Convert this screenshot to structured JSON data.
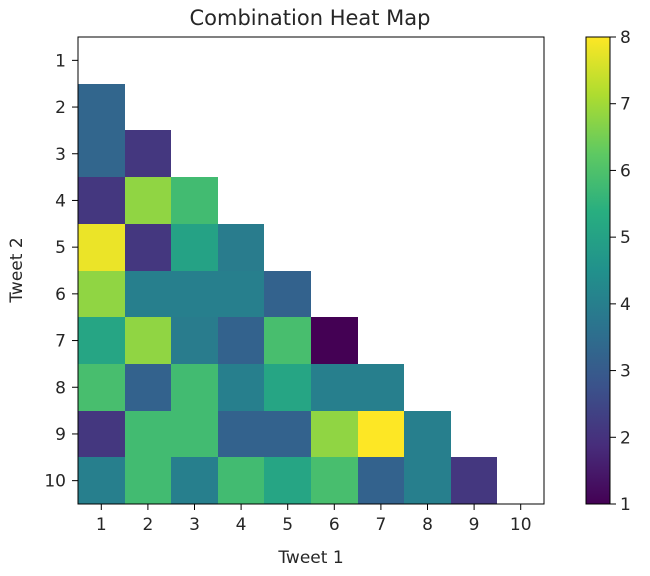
{
  "chart_data": {
    "type": "heatmap",
    "title": "Combination Heat Map",
    "xlabel": "Tweet 1",
    "ylabel": "Tweet 2",
    "x_categories": [
      "1",
      "2",
      "3",
      "4",
      "5",
      "6",
      "7",
      "8",
      "9",
      "10"
    ],
    "y_categories": [
      "1",
      "2",
      "3",
      "4",
      "5",
      "6",
      "7",
      "8",
      "9",
      "10"
    ],
    "values": [
      [
        null,
        null,
        null,
        null,
        null,
        null,
        null,
        null,
        null,
        null
      ],
      [
        3.3,
        null,
        null,
        null,
        null,
        null,
        null,
        null,
        null,
        null
      ],
      [
        3.3,
        2.1,
        null,
        null,
        null,
        null,
        null,
        null,
        null,
        null
      ],
      [
        2.1,
        6.8,
        5.8,
        null,
        null,
        null,
        null,
        null,
        null,
        null
      ],
      [
        7.8,
        2.1,
        5.0,
        3.9,
        null,
        null,
        null,
        null,
        null,
        null
      ],
      [
        6.8,
        4.0,
        4.0,
        4.0,
        3.2,
        null,
        null,
        null,
        null,
        null
      ],
      [
        5.1,
        6.8,
        3.9,
        3.2,
        5.9,
        1.0,
        null,
        null,
        null,
        null
      ],
      [
        5.9,
        3.2,
        5.8,
        4.0,
        5.1,
        4.0,
        4.0,
        null,
        null,
        null
      ],
      [
        2.1,
        5.8,
        5.8,
        3.2,
        3.2,
        6.8,
        8.0,
        4.0,
        null,
        null
      ],
      [
        4.0,
        5.8,
        4.0,
        5.8,
        5.1,
        5.9,
        3.2,
        4.0,
        2.1,
        null
      ]
    ],
    "colorbar": {
      "min": 1,
      "max": 8,
      "ticks": [
        "1",
        "2",
        "3",
        "4",
        "5",
        "6",
        "7",
        "8"
      ]
    },
    "colormap": "viridis",
    "grid": false
  }
}
